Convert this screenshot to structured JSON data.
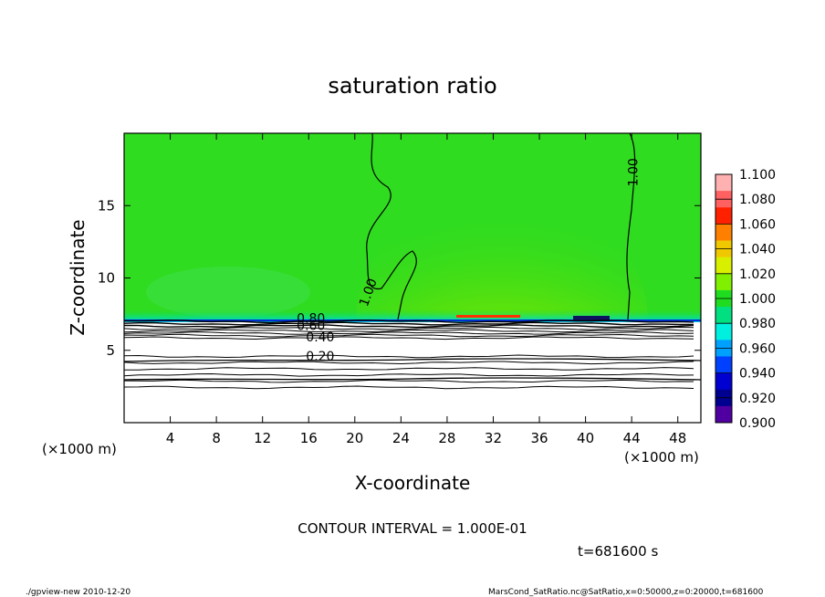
{
  "chart_data": {
    "type": "heatmap",
    "title": "saturation ratio",
    "xlabel": "X-coordinate",
    "ylabel": "Z-coordinate",
    "x_unit": "(×1000 m)",
    "z_unit": "(×1000 m)",
    "xlim": [
      0,
      50
    ],
    "ylim": [
      0,
      20
    ],
    "x_ticks": [
      4,
      8,
      12,
      16,
      20,
      24,
      28,
      32,
      36,
      40,
      44,
      48
    ],
    "y_ticks": [
      5,
      10,
      15
    ],
    "contour_interval_text": "CONTOUR INTERVAL = 1.000E-01",
    "time_text": "t=681600 s",
    "contour_labels": [
      {
        "text": "1.00",
        "x": 21.5,
        "z": 8.9,
        "angle": -70
      },
      {
        "text": "1.00",
        "x": 44.5,
        "z": 17.3,
        "angle": -90
      },
      {
        "text": "0.80",
        "x": 16.2,
        "z": 6.9,
        "angle": 0
      },
      {
        "text": "0.60",
        "x": 16.2,
        "z": 6.4,
        "angle": 0
      },
      {
        "text": "0.40",
        "x": 17.0,
        "z": 5.6,
        "angle": 0
      },
      {
        "text": "0.20",
        "x": 17.0,
        "z": 4.3,
        "angle": 0
      }
    ],
    "colorbar": {
      "levels": [
        "1.100",
        "1.080",
        "1.060",
        "1.040",
        "1.020",
        "1.000",
        "0.980",
        "0.960",
        "0.940",
        "0.920",
        "0.900"
      ],
      "colors": [
        "#ffb0b0",
        "#ff6060",
        "#ff2000",
        "#ff8000",
        "#f0c800",
        "#d8f000",
        "#80f000",
        "#20dc20",
        "#00e080",
        "#00f0e0",
        "#00a0ff",
        "#0040ff",
        "#0000d0",
        "#000090",
        "#5000a0"
      ]
    }
  },
  "footer": {
    "left": "./gpview-new   2010-12-20",
    "right": "MarsCond_SatRatio.nc@SatRatio,x=0:50000,z=0:20000,t=681600"
  }
}
